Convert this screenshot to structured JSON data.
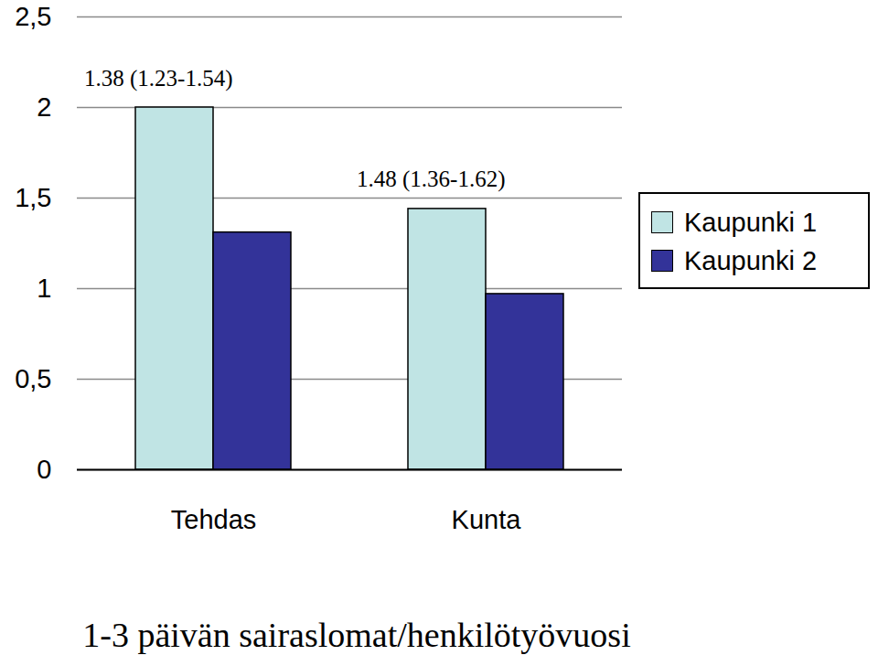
{
  "chart_data": {
    "type": "bar",
    "categories": [
      "Tehdas",
      "Kunta"
    ],
    "series": [
      {
        "name": "Kaupunki 1",
        "color": "#c0e4e4",
        "values": [
          2.0,
          1.44
        ]
      },
      {
        "name": "Kaupunki 2",
        "color": "#333399",
        "values": [
          1.31,
          0.97
        ]
      }
    ],
    "x_label": "1-3 päivän sairaslomat/henkilötyövuosi",
    "annotations": [
      {
        "category": "Tehdas",
        "text": "1.38 (1.23-1.54)"
      },
      {
        "category": "Kunta",
        "text": "1.48 (1.36-1.62)"
      }
    ],
    "ylim": [
      0,
      2.5
    ],
    "yticks": [
      0,
      {
        "value": 0.5,
        "label": "0,5"
      },
      1,
      {
        "value": 1.5,
        "label": "1,5"
      },
      2,
      {
        "value": 2.5,
        "label": "2,5"
      }
    ],
    "grid": true,
    "legend": "right"
  }
}
